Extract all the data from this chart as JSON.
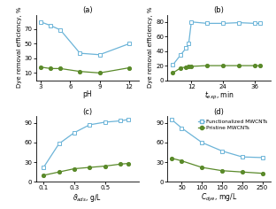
{
  "panel_a": {
    "title": "(a)",
    "xlabel": "pH",
    "ylabel": "Dye removal efficiency, %",
    "blue_x": [
      3,
      4,
      5,
      7,
      9,
      12
    ],
    "blue_y": [
      80,
      75,
      69,
      37,
      35,
      50
    ],
    "green_x": [
      3,
      4,
      5,
      7,
      9,
      12
    ],
    "green_y": [
      18,
      16,
      16,
      12,
      10,
      17
    ],
    "ylim": [
      0,
      90
    ],
    "xlim": [
      2.5,
      13
    ],
    "xticks": [
      3,
      6,
      9,
      12
    ],
    "yticks": [
      10,
      30,
      50,
      70
    ]
  },
  "panel_b": {
    "title": "(b)",
    "xlabel": "t_exp, min",
    "ylabel": "Dye removal efficiency, %",
    "blue_x": [
      5,
      8,
      10,
      11,
      12,
      18,
      24,
      30,
      36,
      38
    ],
    "blue_y": [
      21,
      35,
      44,
      50,
      80,
      78,
      78,
      79,
      78,
      78
    ],
    "green_x": [
      5,
      8,
      10,
      11,
      12,
      18,
      24,
      30,
      36,
      38
    ],
    "green_y": [
      10,
      17,
      18,
      19,
      19,
      20,
      20,
      20,
      20,
      20
    ],
    "ylim": [
      0,
      90
    ],
    "xlim": [
      3,
      42
    ],
    "xticks": [
      12,
      24,
      36
    ],
    "yticks": [
      0,
      20,
      40,
      60,
      80
    ]
  },
  "panel_c": {
    "title": "(c)",
    "xlabel": "D_ads, g/L",
    "ylabel": "",
    "blue_x": [
      0.1,
      0.2,
      0.3,
      0.4,
      0.5,
      0.6,
      0.65
    ],
    "blue_y": [
      22,
      58,
      75,
      87,
      91,
      93,
      95
    ],
    "green_x": [
      0.1,
      0.2,
      0.3,
      0.4,
      0.5,
      0.6,
      0.65
    ],
    "green_y": [
      10,
      15,
      20,
      22,
      24,
      27,
      28
    ],
    "ylim": [
      0,
      100
    ],
    "xlim": [
      0.05,
      0.72
    ],
    "xticks": [
      0.1,
      0.3,
      0.5
    ],
    "yticks": [
      0,
      30,
      60,
      90
    ]
  },
  "panel_d": {
    "title": "(d)",
    "xlabel": "C_dye, mg/L",
    "ylabel": "",
    "blue_x": [
      25,
      50,
      100,
      150,
      200,
      250
    ],
    "blue_y": [
      95,
      82,
      60,
      47,
      38,
      37
    ],
    "green_x": [
      25,
      50,
      100,
      150,
      200,
      250
    ],
    "green_y": [
      36,
      32,
      22,
      17,
      15,
      13
    ],
    "ylim": [
      0,
      100
    ],
    "xlim": [
      15,
      270
    ],
    "xticks": [
      50,
      100,
      150,
      200,
      250
    ],
    "yticks": [
      0,
      30,
      60,
      90
    ],
    "legend_blue": "Functionalized MWCNTs",
    "legend_green": "Pristine MWCNTs"
  },
  "blue_color": "#6cb4d8",
  "green_color": "#5a8a2a",
  "linewidth": 0.9,
  "markersize": 3.0
}
